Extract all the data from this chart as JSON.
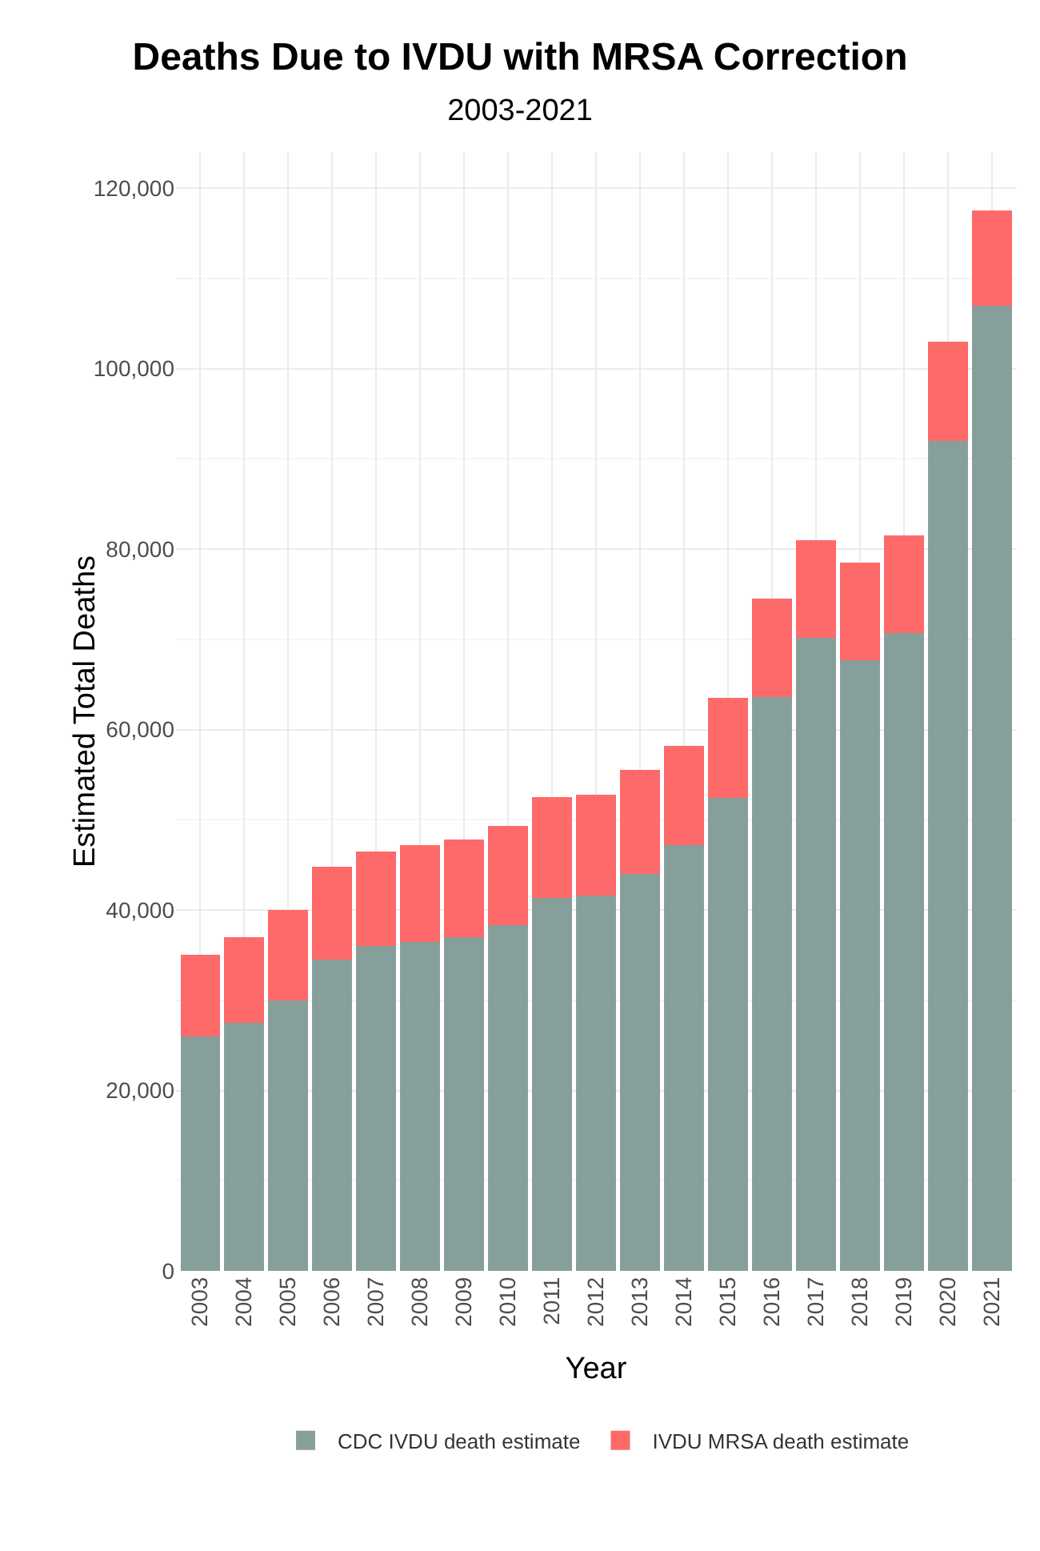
{
  "chart_data": {
    "type": "bar",
    "title": "Deaths Due to IVDU with MRSA Correction",
    "subtitle": "2003-2021",
    "xlabel": "Year",
    "ylabel": "Estimated Total Deaths",
    "categories": [
      "2003",
      "2004",
      "2005",
      "2006",
      "2007",
      "2008",
      "2009",
      "2010",
      "2011",
      "2012",
      "2013",
      "2014",
      "2015",
      "2016",
      "2017",
      "2018",
      "2019",
      "2020",
      "2021"
    ],
    "stacked": true,
    "series": [
      {
        "name": "CDC IVDU death estimate",
        "color": "#879f9b",
        "values": [
          26000,
          27500,
          30000,
          34500,
          36000,
          36500,
          37000,
          38300,
          41300,
          41600,
          44000,
          47200,
          52400,
          63600,
          70200,
          67700,
          70700,
          92000,
          107000
        ]
      },
      {
        "name": "IVDU MRSA death estimate",
        "color": "#fe6a6a",
        "values": [
          9000,
          9500,
          10000,
          10300,
          10500,
          10700,
          10800,
          11000,
          11200,
          11200,
          11500,
          11000,
          11100,
          10900,
          10800,
          10800,
          10800,
          11000,
          10500
        ]
      }
    ],
    "ylim": [
      0,
      124000
    ],
    "yticks": [
      {
        "value": 0,
        "label": "0"
      },
      {
        "value": 20000,
        "label": "20,000"
      },
      {
        "value": 40000,
        "label": "40,000"
      },
      {
        "value": 60000,
        "label": "60,000"
      },
      {
        "value": 80000,
        "label": "80,000"
      },
      {
        "value": 100000,
        "label": "100,000"
      },
      {
        "value": 120000,
        "label": "120,000"
      }
    ],
    "grid": true,
    "legend": "bottom"
  }
}
